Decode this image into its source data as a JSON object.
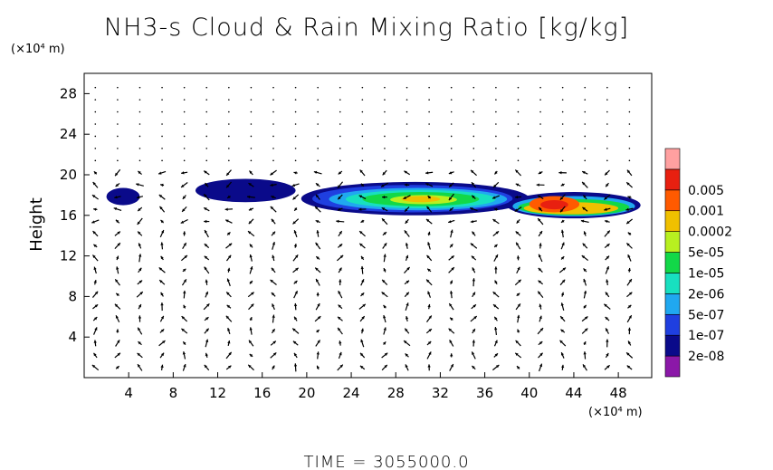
{
  "chart_data": {
    "type": "heatmap",
    "title": "NH3-s Cloud & Rain Mixing Ratio [kg/kg]",
    "ylabel": "Height",
    "x_unit": "(×10⁴ m)",
    "y_unit": "(×10⁴ m)",
    "xlim": [
      0,
      51
    ],
    "ylim": [
      0,
      30
    ],
    "x_ticks": [
      "4",
      "8",
      "12",
      "16",
      "20",
      "24",
      "28",
      "32",
      "36",
      "40",
      "44",
      "48"
    ],
    "y_ticks": [
      "4",
      "8",
      "12",
      "16",
      "20",
      "24",
      "28"
    ],
    "grid": false,
    "colorbar": {
      "levels": [
        "2e-08",
        "1e-07",
        "5e-07",
        "2e-06",
        "1e-05",
        "5e-05",
        "0.0002",
        "0.001",
        "0.005"
      ],
      "colors": [
        "#8b18a8",
        "#0a0a8a",
        "#1f3fe0",
        "#20a8f0",
        "#18e0c0",
        "#12d848",
        "#b8f020",
        "#f0c000",
        "#ff5a00",
        "#e82010",
        "#ffa0a0"
      ]
    },
    "regions": [
      {
        "level": 1,
        "x0": 2.0,
        "x1": 5.0,
        "y0": 17.0,
        "y1": 18.7
      },
      {
        "level": 1,
        "x0": 10.0,
        "x1": 19.0,
        "y0": 17.3,
        "y1": 19.6
      },
      {
        "level": 1,
        "x0": 19.5,
        "x1": 40.0,
        "y0": 16.0,
        "y1": 19.3
      },
      {
        "level": 2,
        "x0": 20.5,
        "x1": 38.5,
        "y0": 16.3,
        "y1": 19.0
      },
      {
        "level": 3,
        "x0": 22.0,
        "x1": 38.0,
        "y0": 16.5,
        "y1": 18.7
      },
      {
        "level": 4,
        "x0": 23.5,
        "x1": 37.0,
        "y0": 16.7,
        "y1": 18.5
      },
      {
        "level": 5,
        "x0": 25.0,
        "x1": 35.5,
        "y0": 16.9,
        "y1": 18.3
      },
      {
        "level": 6,
        "x0": 27.5,
        "x1": 33.5,
        "y0": 17.1,
        "y1": 18.0
      },
      {
        "level": 7,
        "x0": 28.5,
        "x1": 32.0,
        "y0": 17.3,
        "y1": 17.9
      },
      {
        "level": 1,
        "x0": 38.0,
        "x1": 50.0,
        "y0": 15.7,
        "y1": 18.3
      },
      {
        "level": 3,
        "x0": 38.5,
        "x1": 49.5,
        "y0": 15.9,
        "y1": 17.9
      },
      {
        "level": 5,
        "x0": 39.0,
        "x1": 49.0,
        "y0": 16.0,
        "y1": 17.6
      },
      {
        "level": 7,
        "x0": 39.5,
        "x1": 48.0,
        "y0": 16.1,
        "y1": 17.3
      },
      {
        "level": 8,
        "x0": 40.0,
        "x1": 44.5,
        "y0": 16.3,
        "y1": 17.9
      },
      {
        "level": 9,
        "x0": 41.0,
        "x1": 43.5,
        "y0": 16.6,
        "y1": 17.5
      }
    ]
  },
  "footer": {
    "time_label": "TIME = 3055000.0"
  }
}
